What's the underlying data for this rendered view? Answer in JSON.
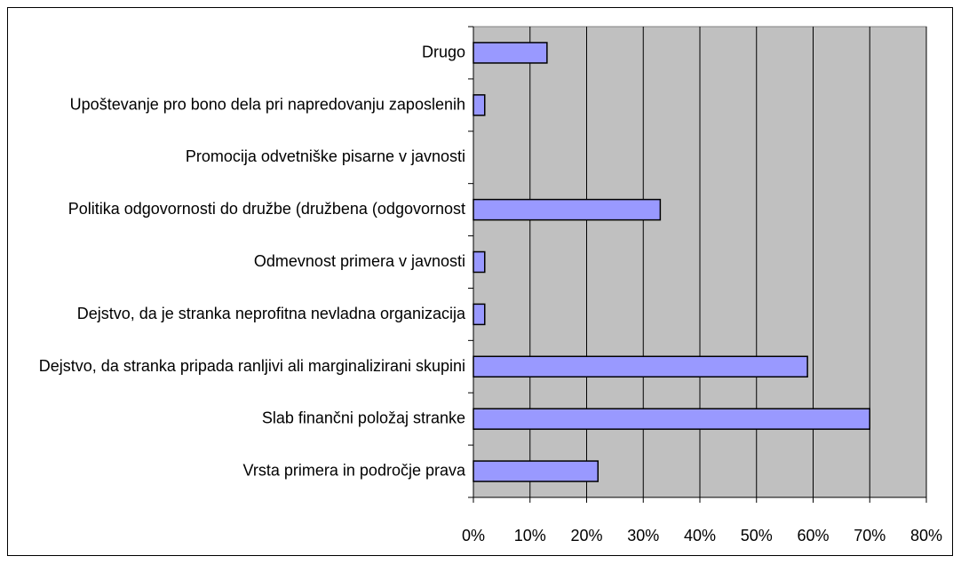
{
  "chart_data": {
    "type": "bar",
    "orientation": "horizontal",
    "categories": [
      "Drugo",
      "Upoštevanje pro bono dela pri napredovanju zaposlenih",
      "Promocija odvetniške pisarne v javnosti",
      "Politika odgovornosti do družbe (družbena (odgovornost",
      "Odmevnost primera v javnosti",
      "Dejstvo, da je stranka neprofitna nevladna organizacija",
      "Dejstvo, da stranka pripada ranljivi ali marginalizirani skupini",
      "Slab finančni položaj stranke",
      "Vrsta primera in področje prava"
    ],
    "values": [
      13,
      2,
      0,
      33,
      2,
      2,
      59,
      70,
      22
    ],
    "color": "#9999ff",
    "xlim": [
      0,
      80
    ],
    "xticks": [
      {
        "value": 0,
        "label": "0%"
      },
      {
        "value": 10,
        "label": "10%"
      },
      {
        "value": 20,
        "label": "20%"
      },
      {
        "value": 30,
        "label": "30%"
      },
      {
        "value": 40,
        "label": "40%"
      },
      {
        "value": 50,
        "label": "50%"
      },
      {
        "value": 60,
        "label": "60%"
      },
      {
        "value": 70,
        "label": "70%"
      },
      {
        "value": 80,
        "label": "80%"
      }
    ],
    "grid": true
  }
}
